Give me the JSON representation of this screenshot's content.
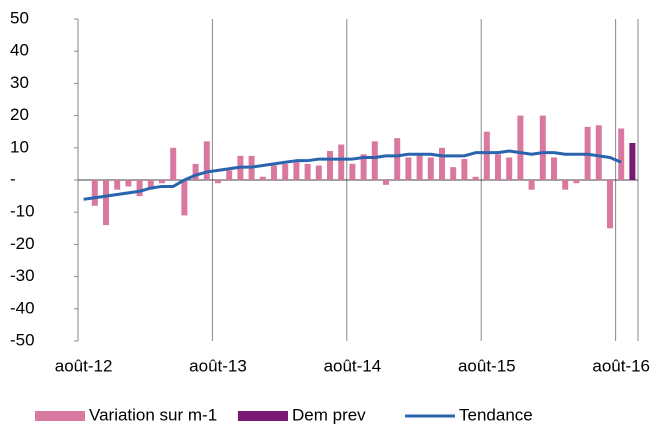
{
  "chart_data": {
    "type": "bar",
    "categories": [
      "août-12",
      null,
      null,
      null,
      null,
      null,
      null,
      null,
      null,
      null,
      null,
      null,
      "août-13",
      null,
      null,
      null,
      null,
      null,
      null,
      null,
      null,
      null,
      null,
      null,
      "août-14",
      null,
      null,
      null,
      null,
      null,
      null,
      null,
      null,
      null,
      null,
      null,
      "août-15",
      null,
      null,
      null,
      null,
      null,
      null,
      null,
      null,
      null,
      null,
      null,
      "août-16",
      null
    ],
    "series": [
      {
        "name": "Variation sur m-1",
        "color": "#d9799f",
        "type": "bar",
        "values": [
          null,
          -8,
          -14,
          -3,
          -2,
          -5,
          -3,
          -1,
          10,
          -11,
          5,
          12,
          -1,
          3,
          7.5,
          7.5,
          1,
          4.5,
          5,
          6,
          5,
          4.5,
          9,
          11,
          5,
          8,
          12,
          -1.5,
          13,
          7,
          8,
          7,
          10,
          4,
          6.5,
          1,
          15,
          8,
          7,
          20,
          -3,
          20,
          7,
          -3,
          -1,
          16.5,
          17,
          -15,
          16,
          null
        ]
      },
      {
        "name": "Dem prev",
        "color": "#7b1a72",
        "type": "bar",
        "values": [
          null,
          null,
          null,
          null,
          null,
          null,
          null,
          null,
          null,
          null,
          null,
          null,
          null,
          null,
          null,
          null,
          null,
          null,
          null,
          null,
          null,
          null,
          null,
          null,
          null,
          null,
          null,
          null,
          null,
          null,
          null,
          null,
          null,
          null,
          null,
          null,
          null,
          null,
          null,
          null,
          null,
          null,
          null,
          null,
          null,
          null,
          null,
          null,
          null,
          11.5
        ]
      },
      {
        "name": "Tendance",
        "color": "#2a64ae",
        "type": "line",
        "values": [
          -6,
          -5.5,
          -5,
          -4.5,
          -4,
          -3.5,
          -2.5,
          -2,
          -2,
          0,
          1.5,
          2.5,
          3,
          3.5,
          4,
          4,
          4.5,
          5,
          5.5,
          6,
          6,
          6.5,
          6.5,
          6.5,
          6.5,
          7,
          7,
          7.5,
          7.5,
          8,
          8,
          8,
          7.5,
          7.5,
          7.5,
          8.5,
          8.5,
          8.5,
          9,
          8.5,
          8,
          8.5,
          8.5,
          8,
          8,
          8,
          7.5,
          7,
          5.5,
          null
        ]
      }
    ],
    "ylim": [
      -50,
      50
    ],
    "yticks": [
      -50,
      -40,
      -30,
      -20,
      -10,
      {
        "value": 0,
        "label": "-"
      },
      10,
      20,
      30,
      40,
      50
    ],
    "legend": "bottom"
  }
}
